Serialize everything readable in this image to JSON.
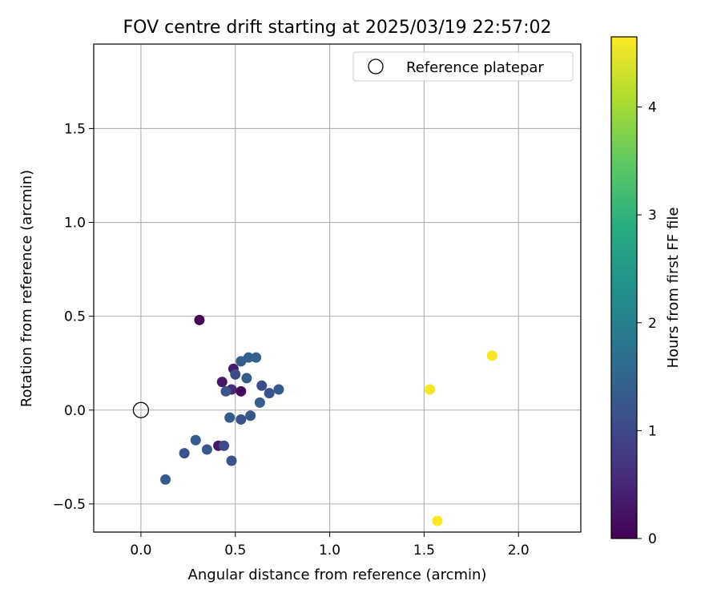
{
  "chart_data": {
    "type": "scatter",
    "title": "FOV centre drift starting at 2025/03/19 22:57:02",
    "xlabel": "Angular distance from reference (arcmin)",
    "ylabel": "Rotation from reference (arcmin)",
    "xlim": [
      -0.25,
      2.33
    ],
    "ylim": [
      -0.65,
      1.95
    ],
    "x_ticks": [
      0.0,
      0.5,
      1.0,
      1.5,
      2.0
    ],
    "x_tick_labels": [
      "0.0",
      "0.5",
      "1.0",
      "1.5",
      "2.0"
    ],
    "y_ticks": [
      -0.5,
      0.0,
      0.5,
      1.0,
      1.5
    ],
    "y_tick_labels": [
      "−0.5",
      "0.0",
      "0.5",
      "1.0",
      "1.5"
    ],
    "grid": true,
    "legend": {
      "placement": "top-right",
      "entries": [
        "Reference platepar"
      ]
    },
    "reference_point": {
      "x": 0.0,
      "y": 0.0,
      "marker": "open-circle",
      "color": "#000000"
    },
    "colorbar": {
      "label": "Hours from first FF file",
      "colormap": "viridis",
      "range": [
        0,
        4.65
      ],
      "ticks": [
        0,
        1,
        2,
        3,
        4
      ],
      "tick_labels": [
        "0",
        "1",
        "2",
        "3",
        "4"
      ]
    },
    "points": [
      {
        "x": 0.31,
        "y": 0.48,
        "hours": 0.02
      },
      {
        "x": 0.49,
        "y": 0.22,
        "hours": 0.35
      },
      {
        "x": 0.43,
        "y": 0.15,
        "hours": 0.3
      },
      {
        "x": 0.48,
        "y": 0.11,
        "hours": 0.5
      },
      {
        "x": 0.53,
        "y": 0.1,
        "hours": 0.1
      },
      {
        "x": 0.41,
        "y": -0.19,
        "hours": 0.3
      },
      {
        "x": 0.44,
        "y": -0.19,
        "hours": 1.05
      },
      {
        "x": 0.5,
        "y": 0.19,
        "hours": 1.05
      },
      {
        "x": 0.45,
        "y": 0.1,
        "hours": 1.2
      },
      {
        "x": 0.53,
        "y": 0.26,
        "hours": 1.35
      },
      {
        "x": 0.57,
        "y": 0.28,
        "hours": 1.4
      },
      {
        "x": 0.61,
        "y": 0.28,
        "hours": 1.45
      },
      {
        "x": 0.56,
        "y": 0.17,
        "hours": 1.3
      },
      {
        "x": 0.64,
        "y": 0.13,
        "hours": 1.1
      },
      {
        "x": 0.68,
        "y": 0.09,
        "hours": 1.15
      },
      {
        "x": 0.73,
        "y": 0.11,
        "hours": 1.3
      },
      {
        "x": 0.63,
        "y": 0.04,
        "hours": 1.4
      },
      {
        "x": 0.47,
        "y": -0.04,
        "hours": 1.3
      },
      {
        "x": 0.53,
        "y": -0.05,
        "hours": 1.2
      },
      {
        "x": 0.58,
        "y": -0.03,
        "hours": 1.25
      },
      {
        "x": 0.29,
        "y": -0.16,
        "hours": 1.3
      },
      {
        "x": 0.35,
        "y": -0.21,
        "hours": 1.25
      },
      {
        "x": 0.23,
        "y": -0.23,
        "hours": 1.2
      },
      {
        "x": 0.48,
        "y": -0.27,
        "hours": 1.2
      },
      {
        "x": 0.13,
        "y": -0.37,
        "hours": 1.3
      },
      {
        "x": 1.53,
        "y": 0.11,
        "hours": 4.6
      },
      {
        "x": 1.86,
        "y": 0.29,
        "hours": 4.6
      },
      {
        "x": 1.57,
        "y": -0.59,
        "hours": 4.65
      }
    ]
  }
}
